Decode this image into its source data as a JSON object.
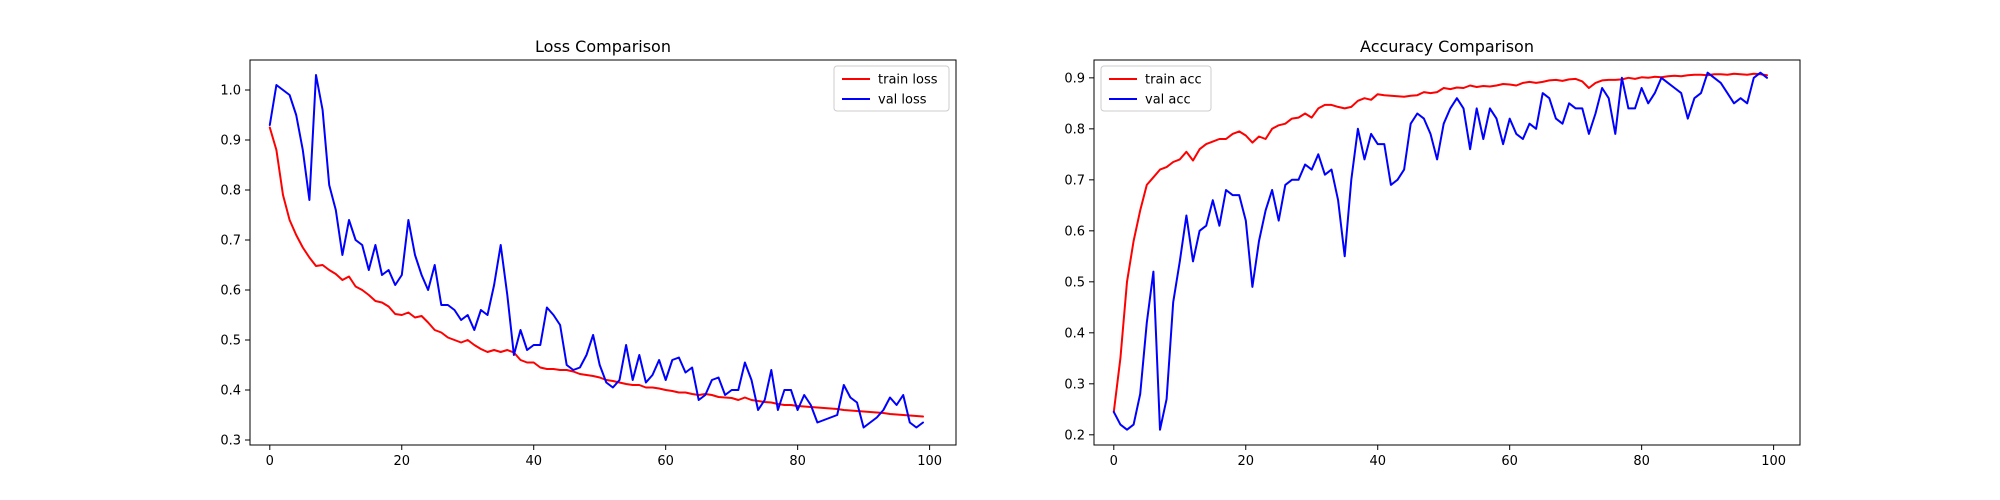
{
  "chart_data": [
    {
      "type": "line",
      "title": "Loss Comparison",
      "xlabel": "",
      "ylabel": "",
      "xlim": [
        -3,
        104
      ],
      "ylim": [
        0.29,
        1.06
      ],
      "xticks": [
        0,
        20,
        40,
        60,
        80,
        100
      ],
      "yticks": [
        0.3,
        0.4,
        0.5,
        0.6,
        0.7,
        0.8,
        0.9,
        1.0
      ],
      "ytick_labels": [
        "0.3",
        "0.4",
        "0.5",
        "0.6",
        "0.7",
        "0.8",
        "0.9",
        "1.0"
      ],
      "grid": false,
      "legend_position": "top-right",
      "series": [
        {
          "name": "train loss",
          "color": "#ff0000",
          "values": [
            0.925,
            0.88,
            0.79,
            0.74,
            0.71,
            0.685,
            0.665,
            0.648,
            0.65,
            0.64,
            0.632,
            0.62,
            0.627,
            0.607,
            0.6,
            0.59,
            0.578,
            0.575,
            0.567,
            0.552,
            0.55,
            0.555,
            0.545,
            0.548,
            0.535,
            0.52,
            0.515,
            0.505,
            0.5,
            0.495,
            0.5,
            0.49,
            0.482,
            0.476,
            0.48,
            0.476,
            0.48,
            0.475,
            0.46,
            0.455,
            0.455,
            0.445,
            0.442,
            0.442,
            0.44,
            0.44,
            0.437,
            0.432,
            0.43,
            0.428,
            0.425,
            0.42,
            0.418,
            0.415,
            0.412,
            0.41,
            0.41,
            0.405,
            0.405,
            0.403,
            0.4,
            0.398,
            0.395,
            0.395,
            0.392,
            0.39,
            0.392,
            0.39,
            0.386,
            0.385,
            0.384,
            0.38,
            0.385,
            0.38,
            0.378,
            0.376,
            0.375,
            0.372,
            0.37,
            0.37,
            0.368,
            0.367,
            0.366,
            0.365,
            0.364,
            0.363,
            0.362,
            0.36,
            0.359,
            0.358,
            0.357,
            0.356,
            0.355,
            0.354,
            0.352,
            0.351,
            0.35,
            0.349,
            0.348,
            0.347
          ]
        },
        {
          "name": "val loss",
          "color": "#0000ff",
          "values": [
            0.93,
            1.01,
            1.0,
            0.99,
            0.95,
            0.88,
            0.78,
            1.03,
            0.96,
            0.81,
            0.76,
            0.67,
            0.74,
            0.7,
            0.69,
            0.64,
            0.69,
            0.63,
            0.64,
            0.61,
            0.63,
            0.74,
            0.67,
            0.63,
            0.6,
            0.65,
            0.57,
            0.57,
            0.56,
            0.54,
            0.55,
            0.52,
            0.56,
            0.55,
            0.61,
            0.69,
            0.59,
            0.47,
            0.52,
            0.48,
            0.49,
            0.49,
            0.565,
            0.55,
            0.53,
            0.45,
            0.44,
            0.445,
            0.47,
            0.51,
            0.45,
            0.415,
            0.405,
            0.42,
            0.49,
            0.42,
            0.47,
            0.415,
            0.43,
            0.46,
            0.42,
            0.46,
            0.465,
            0.435,
            0.445,
            0.38,
            0.39,
            0.42,
            0.425,
            0.39,
            0.4,
            0.4,
            0.455,
            0.42,
            0.36,
            0.38,
            0.44,
            0.36,
            0.4,
            0.4,
            0.36,
            0.39,
            0.37,
            0.335,
            0.34,
            0.345,
            0.35,
            0.41,
            0.385,
            0.375,
            0.325,
            0.335,
            0.345,
            0.36,
            0.385,
            0.37,
            0.39,
            0.335,
            0.325,
            0.335
          ]
        }
      ]
    },
    {
      "type": "line",
      "title": "Accuracy Comparison",
      "xlabel": "",
      "ylabel": "",
      "xlim": [
        -3,
        104
      ],
      "ylim": [
        0.18,
        0.935
      ],
      "xticks": [
        0,
        20,
        40,
        60,
        80,
        100
      ],
      "yticks": [
        0.2,
        0.3,
        0.4,
        0.5,
        0.6,
        0.7,
        0.8,
        0.9
      ],
      "ytick_labels": [
        "0.2",
        "0.3",
        "0.4",
        "0.5",
        "0.6",
        "0.7",
        "0.8",
        "0.9"
      ],
      "grid": false,
      "legend_position": "top-left",
      "series": [
        {
          "name": "train acc",
          "color": "#ff0000",
          "values": [
            0.245,
            0.35,
            0.5,
            0.58,
            0.64,
            0.69,
            0.705,
            0.72,
            0.725,
            0.735,
            0.74,
            0.755,
            0.738,
            0.76,
            0.77,
            0.775,
            0.78,
            0.78,
            0.79,
            0.795,
            0.787,
            0.773,
            0.785,
            0.78,
            0.8,
            0.807,
            0.81,
            0.82,
            0.822,
            0.83,
            0.822,
            0.84,
            0.847,
            0.847,
            0.843,
            0.84,
            0.843,
            0.855,
            0.86,
            0.857,
            0.868,
            0.866,
            0.865,
            0.864,
            0.863,
            0.865,
            0.866,
            0.872,
            0.87,
            0.872,
            0.88,
            0.878,
            0.881,
            0.88,
            0.885,
            0.882,
            0.884,
            0.883,
            0.885,
            0.888,
            0.887,
            0.885,
            0.89,
            0.892,
            0.89,
            0.892,
            0.895,
            0.896,
            0.894,
            0.897,
            0.898,
            0.893,
            0.88,
            0.89,
            0.895,
            0.896,
            0.896,
            0.897,
            0.9,
            0.898,
            0.901,
            0.9,
            0.902,
            0.901,
            0.903,
            0.904,
            0.903,
            0.905,
            0.906,
            0.906,
            0.905,
            0.907,
            0.907,
            0.906,
            0.908,
            0.907,
            0.906,
            0.908,
            0.907,
            0.905
          ]
        },
        {
          "name": "val acc",
          "color": "#0000ff",
          "values": [
            0.245,
            0.22,
            0.21,
            0.22,
            0.28,
            0.42,
            0.52,
            0.21,
            0.27,
            0.46,
            0.54,
            0.63,
            0.54,
            0.6,
            0.61,
            0.66,
            0.61,
            0.68,
            0.67,
            0.67,
            0.62,
            0.49,
            0.58,
            0.64,
            0.68,
            0.62,
            0.69,
            0.7,
            0.7,
            0.73,
            0.72,
            0.75,
            0.71,
            0.72,
            0.66,
            0.55,
            0.7,
            0.8,
            0.74,
            0.79,
            0.77,
            0.77,
            0.69,
            0.7,
            0.72,
            0.81,
            0.83,
            0.82,
            0.79,
            0.74,
            0.81,
            0.84,
            0.86,
            0.84,
            0.76,
            0.84,
            0.78,
            0.84,
            0.82,
            0.77,
            0.82,
            0.79,
            0.78,
            0.81,
            0.8,
            0.87,
            0.86,
            0.82,
            0.81,
            0.85,
            0.84,
            0.84,
            0.79,
            0.83,
            0.88,
            0.86,
            0.79,
            0.9,
            0.84,
            0.84,
            0.88,
            0.85,
            0.87,
            0.9,
            0.89,
            0.88,
            0.87,
            0.82,
            0.86,
            0.87,
            0.91,
            0.9,
            0.89,
            0.87,
            0.85,
            0.86,
            0.85,
            0.9,
            0.91,
            0.9
          ]
        }
      ]
    }
  ]
}
